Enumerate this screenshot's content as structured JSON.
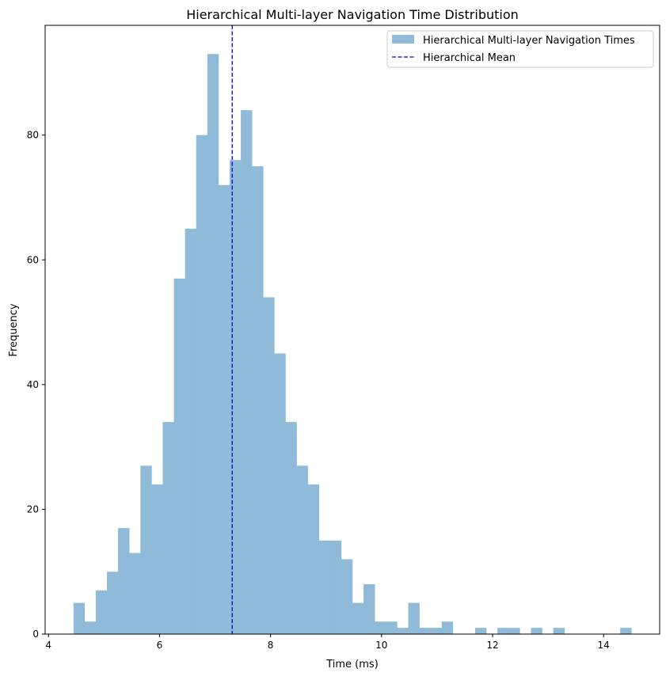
{
  "chart_data": {
    "type": "bar",
    "title": "Hierarchical Multi-layer Navigation Time Distribution",
    "xlabel": "Time (ms)",
    "ylabel": "Frequency",
    "xlim": [
      3.94,
      15.01
    ],
    "ylim": [
      0,
      97.6
    ],
    "xticks": [
      4,
      6,
      8,
      10,
      12,
      14
    ],
    "yticks": [
      0,
      20,
      40,
      60,
      80
    ],
    "bin_start": 4.45,
    "bin_width": 0.201,
    "values": [
      5,
      2,
      7,
      10,
      17,
      13,
      27,
      24,
      34,
      57,
      65,
      80,
      93,
      72,
      76,
      84,
      75,
      54,
      45,
      34,
      27,
      24,
      15,
      15,
      12,
      5,
      8,
      2,
      2,
      1,
      5,
      1,
      1,
      2,
      0,
      0,
      1,
      0,
      1,
      1,
      0,
      1,
      0,
      1,
      0,
      0,
      0,
      0,
      0,
      1
    ],
    "mean": 7.31,
    "grid": false,
    "legend_position": "top-right",
    "legend": [
      "Hierarchical Multi-layer Navigation Times",
      "Hierarchical Mean"
    ],
    "colors": {
      "bars": "#8fbbd9",
      "mean_line": "#0000cc"
    }
  }
}
